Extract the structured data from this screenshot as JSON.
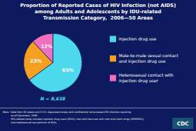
{
  "chart_data": {
    "type": "pie",
    "title": "Proportion of Reported Cases of HIV Infection (not AIDS)\namong Adults and Adolescents by IDU-related\nTransmission Category,  2006—50 Areas",
    "categories": [
      "Injection drug use",
      "Male-to-male sexual contact\nand injection drug use",
      "Heterosexual contact with\ninjection drug user"
    ],
    "values": [
      65,
      23,
      12
    ],
    "value_labels": [
      "65%",
      "23%",
      "12%"
    ],
    "data_labels": true,
    "colors": [
      "#4dd9ec",
      "#f5a020",
      "#f06fbe"
    ],
    "legend": "right",
    "annotations": [
      "N = 8,638",
      "Note:  Data from 45 states and 5 U.S. dependent areas with confidential name-based HIV infection reporting\n           as of December, 2006.\n           IDU-related cases includes injection drug users (IDUs); men who have sex with men and inject drugs (MSM/IDU);\n           and heterosexual sex partners of IDUs.",
      "CDC"
    ]
  }
}
